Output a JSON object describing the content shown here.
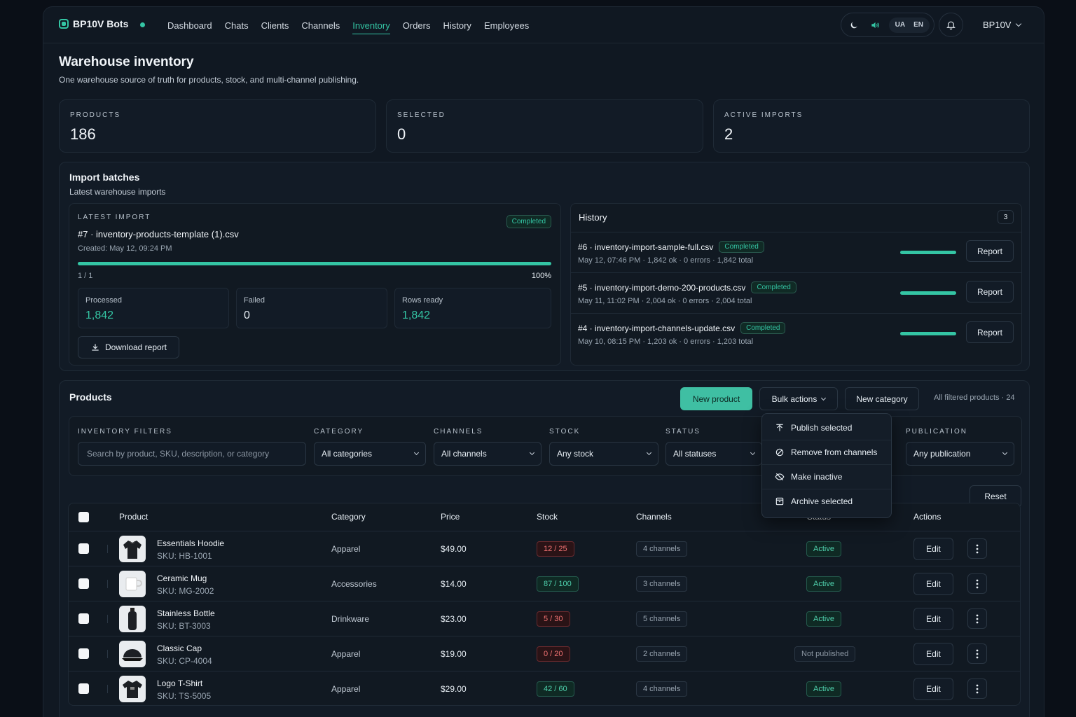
{
  "app": {
    "brand": "BP10V Bots",
    "nav": [
      "Dashboard",
      "Chats",
      "Clients",
      "Channels",
      "Inventory",
      "Orders",
      "History",
      "Employees"
    ],
    "active_nav": "Inventory",
    "langs": [
      "UA",
      "EN"
    ],
    "account": "BP10V"
  },
  "page": {
    "title": "Warehouse inventory",
    "subtitle": "One warehouse source of truth for products, stock, and multi-channel publishing."
  },
  "stats": [
    {
      "label": "PRODUCTS",
      "value": "186"
    },
    {
      "label": "SELECTED",
      "value": "0"
    },
    {
      "label": "ACTIVE IMPORTS",
      "value": "2"
    }
  ],
  "imports": {
    "title": "Import batches",
    "subtitle": "Latest warehouse imports",
    "latest": {
      "caption": "LATEST IMPORT",
      "name": "#7 · inventory-products-template (1).csv",
      "created": "Created: May 12, 09:24 PM",
      "status": "Completed",
      "progress": 1.0,
      "progress_count": "1 / 1",
      "progress_pct": "100%",
      "processed_label": "Processed",
      "processed": "1,842",
      "failed_label": "Failed",
      "failed": "0",
      "ready_label": "Rows ready",
      "ready": "1,842",
      "download": "Download report"
    },
    "history": {
      "title": "History",
      "count": "3",
      "rows": [
        {
          "name": "#6 · inventory-import-sample-full.csv",
          "status": "Completed",
          "meta": "May 12, 07:46 PM · 1,842 ok · 0 errors · 1,842 total",
          "progress": 1.0,
          "action": "Report"
        },
        {
          "name": "#5 · inventory-import-demo-200-products.csv",
          "status": "Completed",
          "meta": "May 11, 11:02 PM · 2,004 ok · 0 errors · 2,004 total",
          "progress": 1.0,
          "action": "Report"
        },
        {
          "name": "#4 · inventory-import-channels-update.csv",
          "status": "Completed",
          "meta": "May 10, 08:15 PM · 1,203 ok · 0 errors · 1,203 total",
          "progress": 1.0,
          "action": "Report"
        }
      ]
    }
  },
  "products": {
    "title": "Products",
    "new_product": "New product",
    "bulk_actions": "Bulk actions",
    "new_category": "New category",
    "filtered_info": "All filtered products · 24",
    "bulk_menu": [
      "Publish selected",
      "Remove from channels",
      "Make inactive",
      "Archive selected"
    ],
    "filters": {
      "caption": "INVENTORY FILTERS",
      "search_placeholder": "Search by product, SKU, description, or category",
      "category_label": "CATEGORY",
      "category_value": "All categories",
      "channels_label": "CHANNELS",
      "channels_value": "All channels",
      "stock_label": "STOCK",
      "stock_value": "Any stock",
      "status_label": "STATUS",
      "status_value": "All statuses",
      "publication_label": "PUBLICATION",
      "publication_value": "Any publication",
      "reset": "Reset"
    },
    "columns": [
      "Product",
      "Category",
      "Price",
      "Stock",
      "Channels",
      "Status",
      "Actions"
    ],
    "rows": [
      {
        "name": "Essentials Hoodie",
        "sku": "SKU: HB-1001",
        "category": "Apparel",
        "price": "$49.00",
        "stock": "12 / 25",
        "stock_state": "low",
        "channels": "4 channels",
        "status": "Active",
        "edit": "Edit",
        "thumb": "hoodie"
      },
      {
        "name": "Ceramic Mug",
        "sku": "SKU: MG-2002",
        "category": "Accessories",
        "price": "$14.00",
        "stock": "87 / 100",
        "stock_state": "ok",
        "channels": "3 channels",
        "status": "Active",
        "edit": "Edit",
        "thumb": "mug"
      },
      {
        "name": "Stainless Bottle",
        "sku": "SKU: BT-3003",
        "category": "Drinkware",
        "price": "$23.00",
        "stock": "5 / 30",
        "stock_state": "low",
        "channels": "5 channels",
        "status": "Active",
        "edit": "Edit",
        "thumb": "bottle"
      },
      {
        "name": "Classic Cap",
        "sku": "SKU: CP-4004",
        "category": "Apparel",
        "price": "$19.00",
        "stock": "0 / 20",
        "stock_state": "low",
        "channels": "2 channels",
        "status": "Not published",
        "edit": "Edit",
        "thumb": "cap"
      },
      {
        "name": "Logo T-Shirt",
        "sku": "SKU: TS-5005",
        "category": "Apparel",
        "price": "$29.00",
        "stock": "42 / 60",
        "stock_state": "ok",
        "channels": "4 channels",
        "status": "Active",
        "edit": "Edit",
        "thumb": "tshirt"
      }
    ]
  },
  "colors": {
    "accent": "#34c5a4",
    "bg": "#0a0f17",
    "danger": "#f27373"
  }
}
